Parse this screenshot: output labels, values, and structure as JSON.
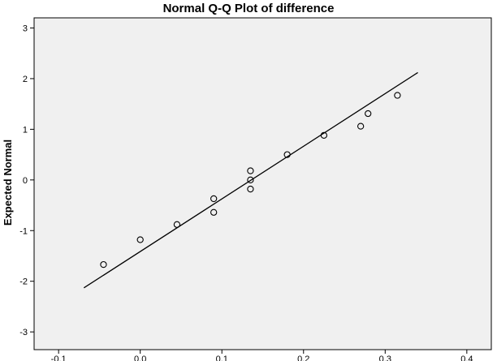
{
  "chart_data": {
    "type": "scatter",
    "title": "Normal Q-Q Plot of difference",
    "xlabel": "",
    "ylabel": "Expected Normal",
    "xlim": [
      -0.13,
      0.43
    ],
    "ylim": [
      -3.35,
      3.2
    ],
    "x_ticks": [
      "-0.1",
      "0.0",
      "0.1",
      "0.2",
      "0.3",
      "0.4"
    ],
    "x_tick_values": [
      -0.1,
      0.0,
      0.1,
      0.2,
      0.3,
      0.4
    ],
    "y_ticks": [
      "-3",
      "-2",
      "-1",
      "0",
      "1",
      "2",
      "3"
    ],
    "y_tick_values": [
      -3,
      -2,
      -1,
      0,
      1,
      2,
      3
    ],
    "grid": false,
    "points": [
      {
        "x": -0.045,
        "y": -1.67
      },
      {
        "x": 0.0,
        "y": -1.18
      },
      {
        "x": 0.045,
        "y": -0.88
      },
      {
        "x": 0.09,
        "y": -0.64
      },
      {
        "x": 0.09,
        "y": -0.37
      },
      {
        "x": 0.135,
        "y": -0.18
      },
      {
        "x": 0.135,
        "y": 0.0
      },
      {
        "x": 0.135,
        "y": 0.18
      },
      {
        "x": 0.18,
        "y": 0.5
      },
      {
        "x": 0.225,
        "y": 0.88
      },
      {
        "x": 0.27,
        "y": 1.06
      },
      {
        "x": 0.279,
        "y": 1.31
      },
      {
        "x": 0.315,
        "y": 1.67
      }
    ],
    "reference_line": {
      "x": [
        -0.069,
        0.34
      ],
      "y": [
        -2.13,
        2.12
      ]
    },
    "colors": {
      "plot_background": "#f0f0f0",
      "page_background": "#ffffff",
      "marker_stroke": "#000000",
      "line": "#000000"
    }
  }
}
